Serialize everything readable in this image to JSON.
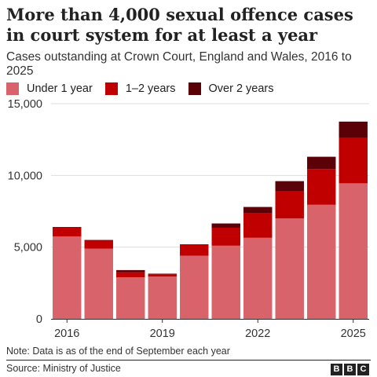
{
  "title": "More than 4,000 sexual offence cases in court system for at least a year",
  "subtitle": "Cases outstanding at Crown Court, England and Wales, 2016 to 2025",
  "note": "Note: Data is as of the end of September each year",
  "source": "Source: Ministry of Justice",
  "logo": [
    "B",
    "B",
    "C"
  ],
  "colors": {
    "under1": "#d9636a",
    "one_two": "#c00000",
    "over2": "#5c0008"
  },
  "chart_data": {
    "type": "bar",
    "stacked": true,
    "categories": [
      "2016",
      "2017",
      "2018",
      "2019",
      "2020",
      "2021",
      "2022",
      "2023",
      "2024",
      "2025"
    ],
    "x_tick_labels": [
      "2016",
      "",
      "",
      "2019",
      "",
      "",
      "2022",
      "",
      "",
      "2025"
    ],
    "series": [
      {
        "name": "Under 1 year",
        "values": [
          5750,
          4900,
          2900,
          2950,
          4400,
          5100,
          5650,
          7000,
          7950,
          9450
        ]
      },
      {
        "name": "1–2 years",
        "values": [
          600,
          550,
          350,
          150,
          800,
          1250,
          1700,
          1900,
          2500,
          3150
        ]
      },
      {
        "name": "Over 2 years",
        "values": [
          50,
          50,
          150,
          50,
          0,
          300,
          450,
          700,
          850,
          1150
        ]
      }
    ],
    "ylim": [
      0,
      15000
    ],
    "y_ticks": [
      0,
      5000,
      10000,
      15000
    ],
    "y_tick_labels": [
      "0",
      "5,000",
      "10,000",
      "15,000"
    ],
    "grid": true,
    "legend_position": "top-left"
  }
}
